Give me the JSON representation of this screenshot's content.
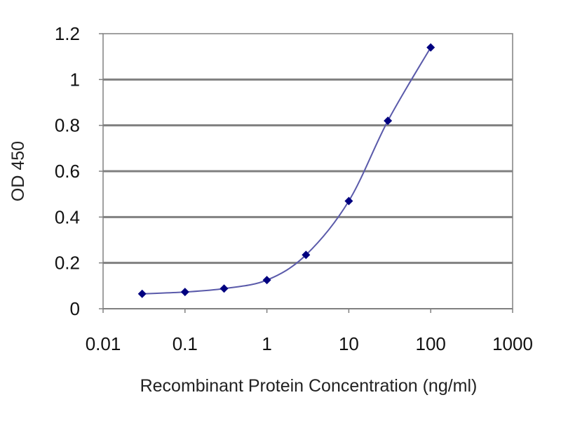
{
  "chart_data": {
    "type": "line",
    "xlabel": "Recombinant Protein Concentration (ng/ml)",
    "ylabel": "OD 450",
    "x_scale": "log",
    "xlim": [
      0.01,
      1000
    ],
    "ylim": [
      0,
      1.2
    ],
    "x_ticks": [
      "0.01",
      "0.1",
      "1",
      "10",
      "100",
      "1000"
    ],
    "y_ticks": [
      "0",
      "0.2",
      "0.4",
      "0.6",
      "0.8",
      "1",
      "1.2"
    ],
    "grid": "horizontal",
    "legend": "none",
    "series": [
      {
        "x": [
          0.03,
          0.1,
          0.3,
          1,
          3,
          10,
          30,
          100
        ],
        "y": [
          0.065,
          0.073,
          0.088,
          0.125,
          0.235,
          0.47,
          0.82,
          1.14
        ],
        "color": "#000080",
        "line_color": "#5a5aaa"
      }
    ],
    "colors": {
      "plot_background": "#ffffff",
      "grid": "#808080",
      "frame": "#808080",
      "marker": "#000080"
    }
  }
}
